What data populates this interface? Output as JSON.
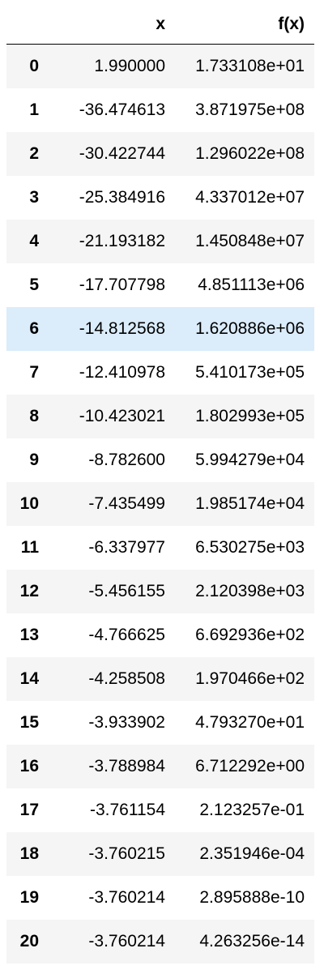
{
  "table": {
    "columns": [
      "",
      "x",
      "f(x)"
    ],
    "highlight_color": "#dbecfa",
    "stripe_color": "#f5f5f5",
    "rows": [
      {
        "index": "0",
        "x": "1.990000",
        "fx": "1.733108e+01"
      },
      {
        "index": "1",
        "x": "-36.474613",
        "fx": "3.871975e+08"
      },
      {
        "index": "2",
        "x": "-30.422744",
        "fx": "1.296022e+08"
      },
      {
        "index": "3",
        "x": "-25.384916",
        "fx": "4.337012e+07"
      },
      {
        "index": "4",
        "x": "-21.193182",
        "fx": "1.450848e+07"
      },
      {
        "index": "5",
        "x": "-17.707798",
        "fx": "4.851113e+06"
      },
      {
        "index": "6",
        "x": "-14.812568",
        "fx": "1.620886e+06"
      },
      {
        "index": "7",
        "x": "-12.410978",
        "fx": "5.410173e+05"
      },
      {
        "index": "8",
        "x": "-10.423021",
        "fx": "1.802993e+05"
      },
      {
        "index": "9",
        "x": "-8.782600",
        "fx": "5.994279e+04"
      },
      {
        "index": "10",
        "x": "-7.435499",
        "fx": "1.985174e+04"
      },
      {
        "index": "11",
        "x": "-6.337977",
        "fx": "6.530275e+03"
      },
      {
        "index": "12",
        "x": "-5.456155",
        "fx": "2.120398e+03"
      },
      {
        "index": "13",
        "x": "-4.766625",
        "fx": "6.692936e+02"
      },
      {
        "index": "14",
        "x": "-4.258508",
        "fx": "1.970466e+02"
      },
      {
        "index": "15",
        "x": "-3.933902",
        "fx": "4.793270e+01"
      },
      {
        "index": "16",
        "x": "-3.788984",
        "fx": "6.712292e+00"
      },
      {
        "index": "17",
        "x": "-3.761154",
        "fx": "2.123257e-01"
      },
      {
        "index": "18",
        "x": "-3.760215",
        "fx": "2.351946e-04"
      },
      {
        "index": "19",
        "x": "-3.760214",
        "fx": "2.895888e-10"
      },
      {
        "index": "20",
        "x": "-3.760214",
        "fx": "4.263256e-14"
      }
    ]
  }
}
